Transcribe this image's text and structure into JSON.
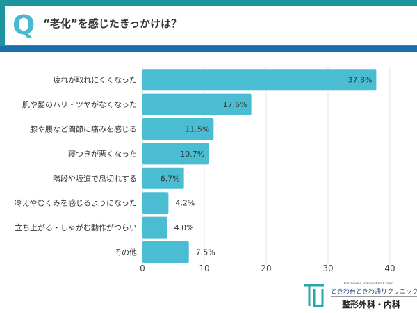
{
  "header": {
    "q_letter": "Q",
    "title": "“老化”を感じたきっかけは？"
  },
  "colors": {
    "bar": "#4bbdd3",
    "header_teal": "#1d949f",
    "header_blue": "#1a6fae",
    "q": "#48b8d3"
  },
  "chart_data": {
    "type": "bar",
    "orientation": "horizontal",
    "categories": [
      "疲れが取れにくくなった",
      "肌や髪のハリ・ツヤがなくなった",
      "膝や腰など関節に痛みを感じる",
      "寝つきが悪くなった",
      "階段や坂道で息切れする",
      "冷えやむくみを感じるようになった",
      "立ち上がる・しゃがむ動作がつらい",
      "その他"
    ],
    "values": [
      37.8,
      17.6,
      11.5,
      10.7,
      6.7,
      4.2,
      4.0,
      7.5
    ],
    "value_labels": [
      "37.8%",
      "17.6%",
      "11.5%",
      "10.7%",
      "6.7%",
      "4.2%",
      "4.0%",
      "7.5%"
    ],
    "xlim": [
      0,
      40
    ],
    "xticks": [
      "0",
      "10",
      "20",
      "30",
      "40"
    ],
    "grid": true
  },
  "logo": {
    "small": "Tokiwadai Tokiwadori Clinic",
    "name": "ときわ台ときわ通りクリニック",
    "dept": "整形外科・内科"
  }
}
